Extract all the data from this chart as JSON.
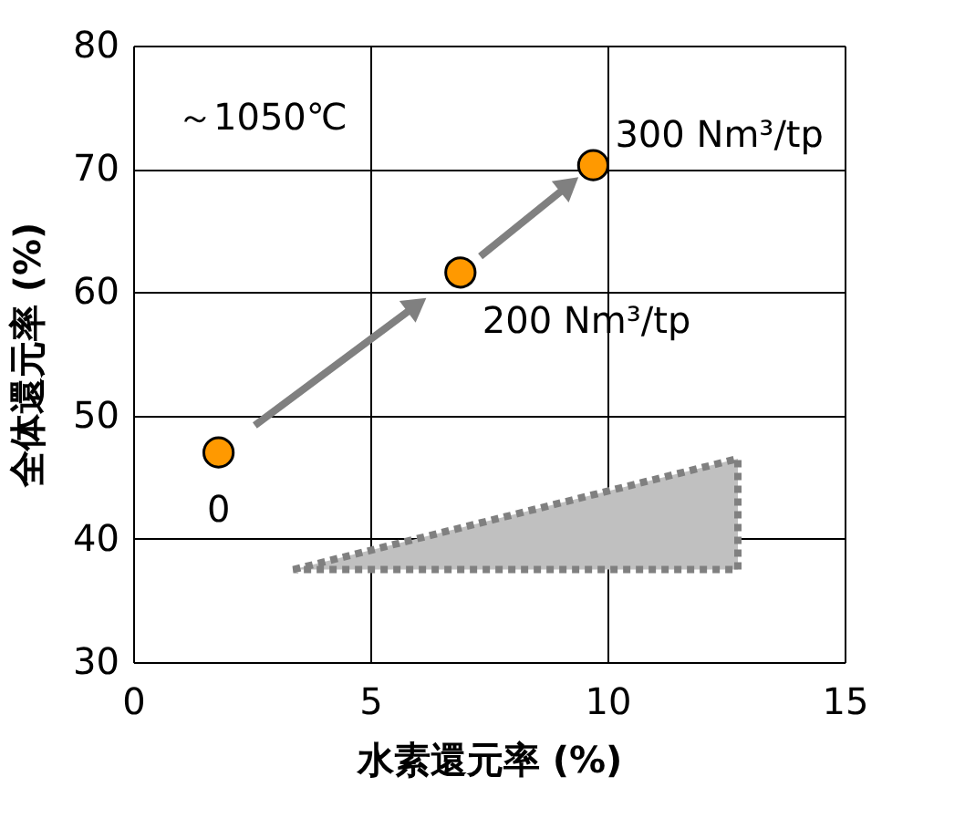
{
  "chart_data": {
    "type": "scatter",
    "xlabel": "水素還元率 (%)",
    "ylabel": "全体還元率 (%)",
    "x": [
      1.8,
      6.9,
      9.7
    ],
    "series": [
      {
        "color": "#ff9900",
        "values": [
          47,
          61.6,
          70.3
        ]
      }
    ],
    "xlim": [
      0,
      15
    ],
    "ylim": [
      30,
      80
    ],
    "xticks": [
      0,
      5,
      10,
      15
    ],
    "yticks": [
      30,
      40,
      50,
      60,
      70,
      80
    ],
    "grid": true,
    "marker": "circle",
    "annotations": [
      "～1050℃",
      {
        "text": "0",
        "x": 1.8,
        "y": 47
      },
      {
        "text": "200 Nm³/tp",
        "x": 6.9,
        "y": 61.6
      },
      {
        "text": "300 Nm³/tp",
        "x": 9.7,
        "y": 70.3
      }
    ]
  }
}
